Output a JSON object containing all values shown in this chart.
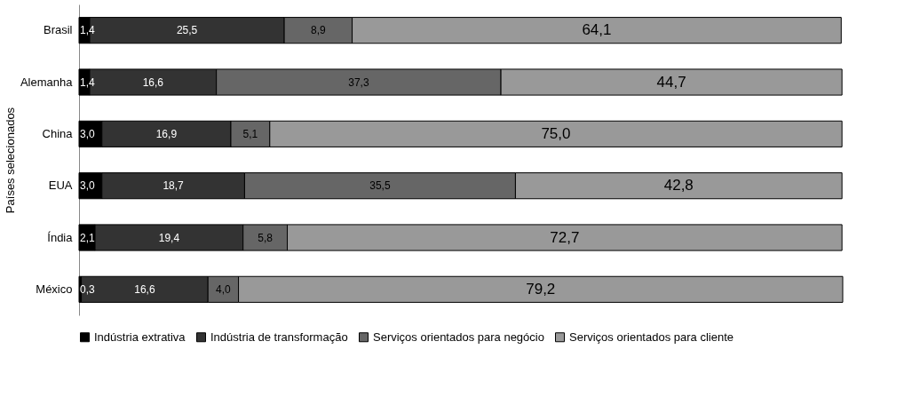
{
  "chart_data": {
    "type": "bar",
    "orientation": "horizontal",
    "stacked": true,
    "ylabel": "Países selecionados",
    "categories": [
      "Brasil",
      "Alemanha",
      "China",
      "EUA",
      "Índia",
      "México"
    ],
    "series": [
      {
        "name": "Indústria extrativa",
        "color": "#000000",
        "values": [
          1.4,
          1.4,
          3.0,
          3.0,
          2.1,
          0.3
        ],
        "value_labels": [
          "1,4",
          "1,4",
          "3,0",
          "3,0",
          "2,1",
          "0,3"
        ]
      },
      {
        "name": "Indústria de transformação",
        "color": "#333333",
        "values": [
          25.5,
          16.6,
          16.9,
          18.7,
          19.4,
          16.6
        ],
        "value_labels": [
          "25,5",
          "16,6",
          "16,9",
          "18,7",
          "19,4",
          "16,6"
        ]
      },
      {
        "name": "Serviços orientados para negócio",
        "color": "#666666",
        "values": [
          8.9,
          37.3,
          5.1,
          35.5,
          5.8,
          4.0
        ],
        "value_labels": [
          "8,9",
          "37,3",
          "5,1",
          "35,5",
          "5,8",
          "4,0"
        ]
      },
      {
        "name": "Serviços orientados para cliente",
        "color": "#999999",
        "values": [
          64.1,
          44.7,
          75.0,
          42.8,
          72.7,
          79.2
        ],
        "value_labels": [
          "64,1",
          "44,7",
          "75,0",
          "42,8",
          "72,7",
          "79,2"
        ]
      }
    ],
    "legend": "bottom",
    "grid": false
  }
}
